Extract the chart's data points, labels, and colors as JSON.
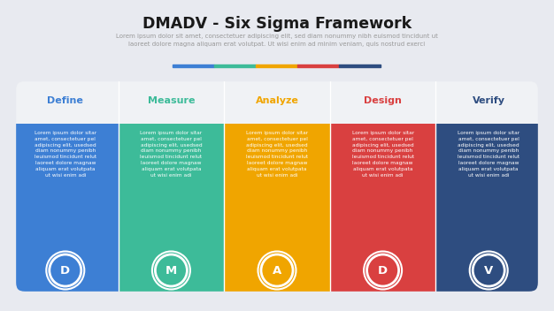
{
  "title": "DMADV - Six Sigma Framework",
  "subtitle": "Lorem ipsum dolor sit amet, consectetuer adipiscing elit, sed diam nonummy nibh euismod tincidunt ut\nlaoreet dolore magna aliquam erat volutpat. Ut wisi enim ad minim veniam, quis nostrud exerci",
  "background_color": "#e8eaf0",
  "columns": [
    {
      "label": "Define",
      "letter": "D",
      "color": "#3d7fd4",
      "label_color": "#3d7fd4"
    },
    {
      "label": "Measure",
      "letter": "M",
      "color": "#3dbb99",
      "label_color": "#3dbb99"
    },
    {
      "label": "Analyze",
      "letter": "A",
      "color": "#f0a500",
      "label_color": "#f0a500"
    },
    {
      "label": "Design",
      "letter": "D",
      "color": "#d94040",
      "label_color": "#d94040"
    },
    {
      "label": "Verify",
      "letter": "V",
      "color": "#2e4d80",
      "label_color": "#2e4d80"
    }
  ],
  "divider_colors": [
    "#3d7fd4",
    "#3dbb99",
    "#f0a500",
    "#d94040",
    "#2e4d80"
  ],
  "body_text": "Lorem ipsum dolor sitar\namet, consectetuer pel\nadipiscing elit, usedsed\ndiam nonummy penibh\nleuismod tincidunt relut\nlaoreet dolore magnaw\naliquam erat volutpata\nut wisi enim adi",
  "header_bg": "#f0f2f5"
}
